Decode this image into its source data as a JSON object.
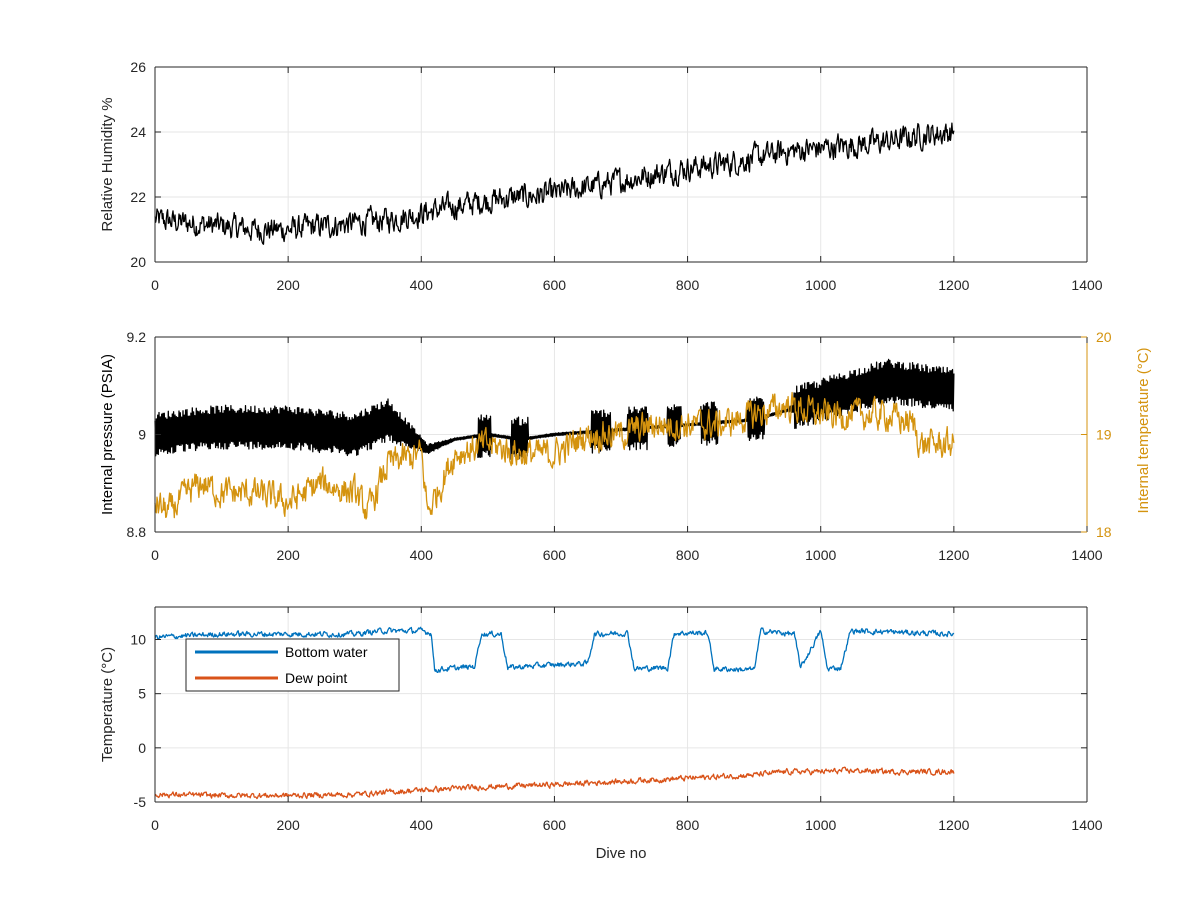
{
  "colors": {
    "pressure": "#000000",
    "humidity": "#000000",
    "internal_temperature": "#D4930F",
    "bottom_water": "#0072BD",
    "dew_point": "#D95319",
    "grid": "#e6e6e6",
    "axis": "#262626"
  },
  "chart_data": [
    {
      "type": "line",
      "xlabel": "",
      "ylabel": "Relative Humidity %",
      "xlim": [
        0,
        1400
      ],
      "ylim": [
        20,
        26
      ],
      "x_ticks": [
        "0",
        "200",
        "400",
        "600",
        "800",
        "1000",
        "1200",
        "1400"
      ],
      "y_ticks": [
        "20",
        "22",
        "24",
        "26"
      ],
      "grid": true,
      "series": [
        {
          "x": [
            0,
            50,
            100,
            150,
            200,
            250,
            300,
            350,
            400,
            450,
            500,
            550,
            600,
            650,
            700,
            750,
            800,
            850,
            900,
            950,
            1000,
            1050,
            1100,
            1150,
            1200
          ],
          "values": [
            21.3,
            21.2,
            21.1,
            21.0,
            21.0,
            21.1,
            21.2,
            21.3,
            21.5,
            21.7,
            21.9,
            22.0,
            22.1,
            22.3,
            22.5,
            22.7,
            22.9,
            23.0,
            23.2,
            23.4,
            23.5,
            23.6,
            23.7,
            23.9,
            24.0
          ],
          "noise": 0.45
        }
      ]
    },
    {
      "type": "line",
      "xlabel": "",
      "ylabel": "Internal pressure (PSIA)",
      "y2label": "Internal temperature (°C)",
      "xlim": [
        0,
        1400
      ],
      "ylim": [
        8.8,
        9.2
      ],
      "y2lim": [
        18,
        20
      ],
      "x_ticks": [
        "0",
        "200",
        "400",
        "600",
        "800",
        "1000",
        "1200",
        "1400"
      ],
      "y_ticks": [
        "8.8",
        "9",
        "9.2"
      ],
      "y2_ticks": [
        "18",
        "19",
        "20"
      ],
      "grid": true,
      "series": [
        {
          "name": "",
          "axis": "left",
          "x": [
            0,
            50,
            100,
            200,
            300,
            350,
            410,
            450,
            500,
            550,
            600,
            700,
            800,
            900,
            950,
            1000,
            1050,
            1100,
            1150,
            1200
          ],
          "values": [
            9.0,
            9.01,
            9.015,
            9.015,
            9.0,
            9.03,
            8.97,
            8.99,
            9.0,
            8.99,
            9.0,
            9.01,
            9.02,
            9.03,
            9.05,
            9.07,
            9.09,
            9.11,
            9.1,
            9.09
          ],
          "band": [
            0.045,
            0.045,
            0.045,
            0.045,
            0.045,
            0.045,
            0.01,
            0.003,
            0.003,
            0.003,
            0.003,
            0.003,
            0.003,
            0.003,
            0.003,
            0.045,
            0.045,
            0.045,
            0.045,
            0.045
          ],
          "bursts": [
            [
              485,
              505
            ],
            [
              535,
              560
            ],
            [
              655,
              685
            ],
            [
              710,
              740
            ],
            [
              770,
              790
            ],
            [
              820,
              845
            ],
            [
              890,
              915
            ],
            [
              960,
              990
            ]
          ]
        },
        {
          "name": "",
          "axis": "right",
          "x": [
            0,
            20,
            50,
            70,
            100,
            150,
            200,
            250,
            300,
            320,
            350,
            400,
            410,
            450,
            500,
            550,
            600,
            650,
            700,
            750,
            800,
            850,
            900,
            950,
            1000,
            1050,
            1100,
            1140,
            1150,
            1200
          ],
          "values": [
            18.3,
            18.2,
            18.4,
            18.5,
            18.4,
            18.4,
            18.3,
            18.5,
            18.4,
            18.2,
            18.7,
            18.8,
            18.2,
            18.8,
            18.9,
            18.8,
            18.8,
            19.0,
            19.0,
            19.1,
            19.1,
            19.1,
            19.2,
            19.3,
            19.2,
            19.2,
            19.2,
            19.1,
            18.9,
            18.9
          ],
          "noise": 0.18
        }
      ]
    },
    {
      "type": "line",
      "xlabel": "Dive no",
      "ylabel": "Temperature (°C)",
      "xlim": [
        0,
        1400
      ],
      "ylim": [
        -5,
        13
      ],
      "x_ticks": [
        "0",
        "200",
        "400",
        "600",
        "800",
        "1000",
        "1200",
        "1400"
      ],
      "y_ticks": [
        "-5",
        "0",
        "5",
        "10"
      ],
      "grid": true,
      "legend": "top-left",
      "series": [
        {
          "name": "Bottom water",
          "x": [
            0,
            100,
            200,
            300,
            340,
            400,
            415,
            420,
            480,
            490,
            520,
            530,
            580,
            650,
            660,
            710,
            720,
            770,
            780,
            830,
            840,
            900,
            910,
            960,
            970,
            1000,
            1010,
            1030,
            1045,
            1100,
            1200
          ],
          "values": [
            10.2,
            10.5,
            10.5,
            10.5,
            10.8,
            10.8,
            10.6,
            7.2,
            7.5,
            10.5,
            10.5,
            7.4,
            7.6,
            7.8,
            10.5,
            10.6,
            7.3,
            7.4,
            10.6,
            10.6,
            7.3,
            7.2,
            10.8,
            10.5,
            7.4,
            10.8,
            7.3,
            7.4,
            10.8,
            10.7,
            10.5
          ],
          "noise": 0.3
        },
        {
          "name": "Dew point",
          "x": [
            0,
            100,
            200,
            300,
            400,
            500,
            600,
            700,
            800,
            900,
            950,
            1000,
            1050,
            1100,
            1200
          ],
          "values": [
            -4.3,
            -4.4,
            -4.4,
            -4.3,
            -3.9,
            -3.6,
            -3.4,
            -3.1,
            -2.8,
            -2.5,
            -2.2,
            -2.2,
            -2.1,
            -2.2,
            -2.2
          ],
          "noise": 0.3
        }
      ]
    }
  ]
}
